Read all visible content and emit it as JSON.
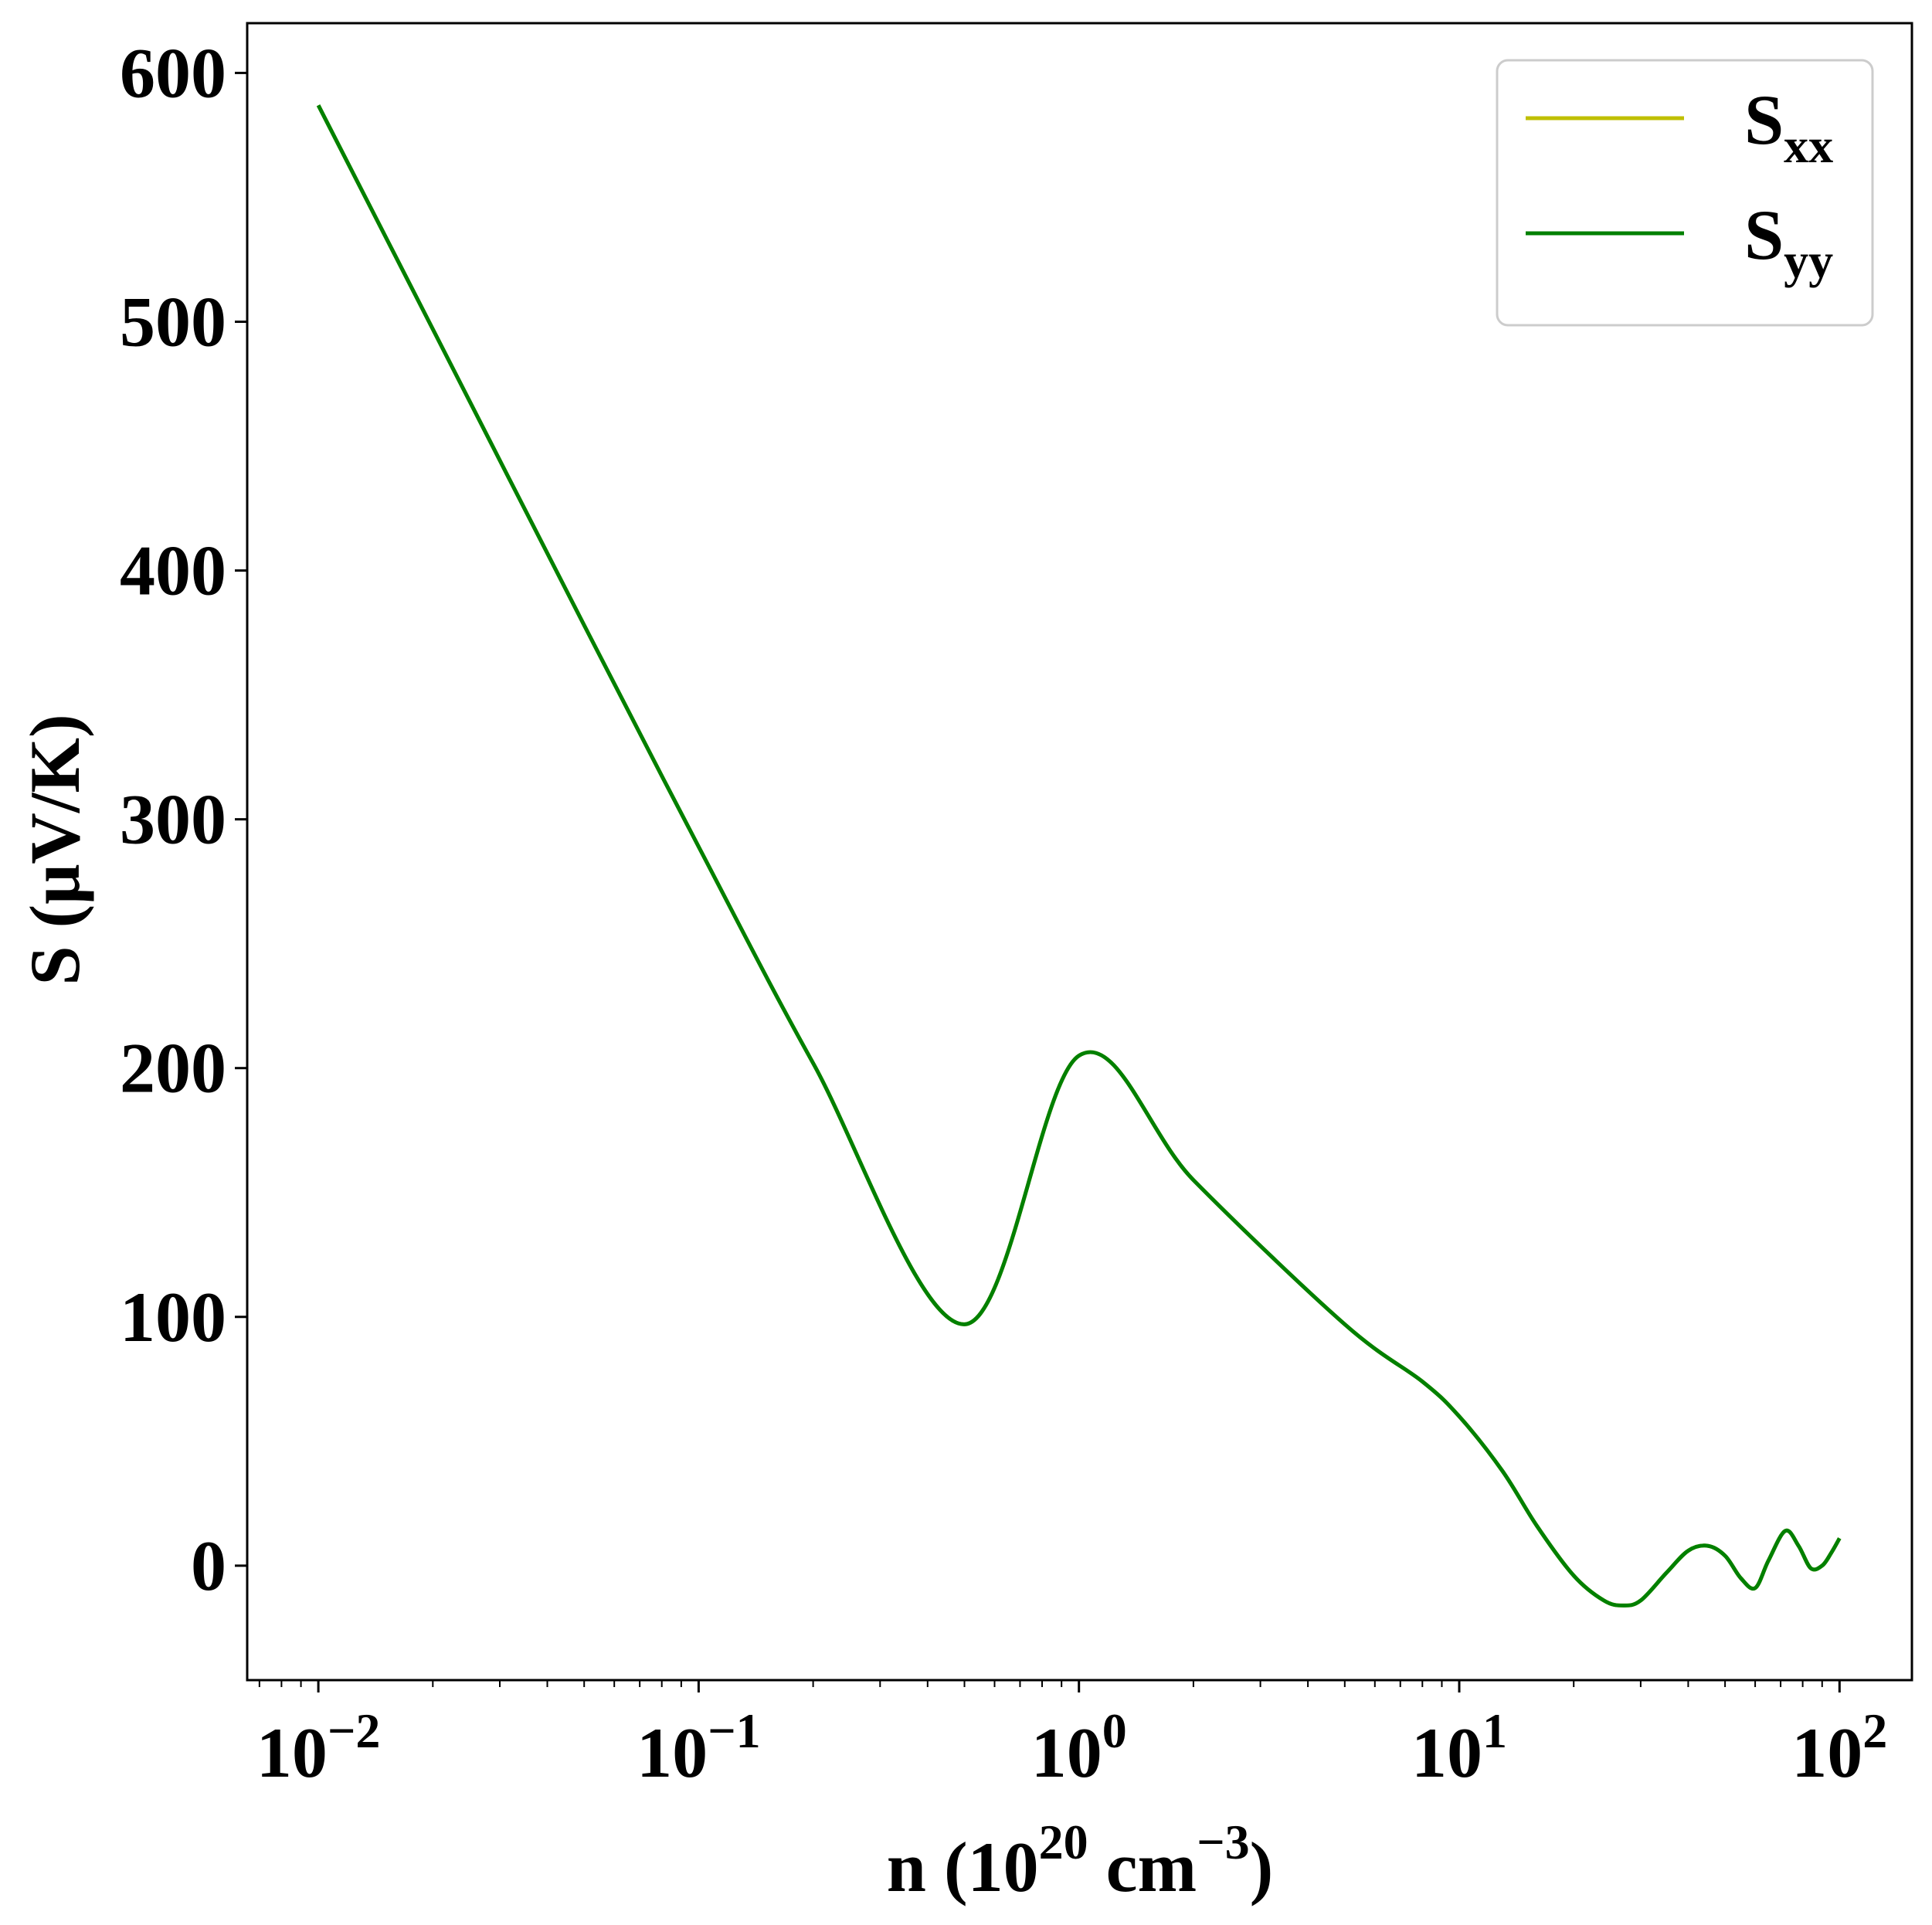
{
  "chart_data": {
    "type": "line",
    "x_scale": "log",
    "xlabel": {
      "main": "n (10",
      "sup1": "20",
      "mid": " cm",
      "sup2": "−3",
      "end": ")"
    },
    "ylabel": "S (μV/K)",
    "xlim": [
      0.0065,
      155
    ],
    "ylim": [
      -46,
      620
    ],
    "x_ticks": [
      {
        "value": 0.01,
        "base": "10",
        "exp": "−2"
      },
      {
        "value": 0.1,
        "base": "10",
        "exp": "−1"
      },
      {
        "value": 1,
        "base": "10",
        "exp": "0"
      },
      {
        "value": 10,
        "base": "10",
        "exp": "1"
      },
      {
        "value": 100,
        "base": "10",
        "exp": "2"
      }
    ],
    "y_ticks": [
      {
        "value": 0,
        "label": "0"
      },
      {
        "value": 100,
        "label": "100"
      },
      {
        "value": 200,
        "label": "200"
      },
      {
        "value": 300,
        "label": "300"
      },
      {
        "value": 400,
        "label": "400"
      },
      {
        "value": 500,
        "label": "500"
      },
      {
        "value": 600,
        "label": "600"
      }
    ],
    "grid": false,
    "legend": {
      "placement": "top-right"
    },
    "series": [
      {
        "name": "S_xx",
        "label_base": "S",
        "label_sub": "xx",
        "color": "#bfbf00",
        "points": [
          [
            0.01,
            587
          ],
          [
            0.02,
            497
          ],
          [
            0.05,
            378
          ],
          [
            0.1,
            289
          ],
          [
            0.2,
            202
          ],
          [
            0.5,
            97
          ],
          [
            1,
            205
          ],
          [
            2,
            155
          ],
          [
            5,
            97
          ],
          [
            8,
            74
          ],
          [
            10,
            60
          ],
          [
            13,
            38
          ],
          [
            16,
            16
          ],
          [
            20,
            -4
          ],
          [
            24,
            -14
          ],
          [
            27,
            -16
          ],
          [
            30,
            -14
          ],
          [
            35,
            -3
          ],
          [
            40,
            6
          ],
          [
            45,
            8
          ],
          [
            50,
            4
          ],
          [
            55,
            -5
          ],
          [
            60,
            -9
          ],
          [
            65,
            2
          ],
          [
            72,
            14
          ],
          [
            78,
            8
          ],
          [
            84,
            -1
          ],
          [
            90,
            0
          ],
          [
            95,
            5
          ],
          [
            100,
            11
          ]
        ]
      },
      {
        "name": "S_yy",
        "label_base": "S",
        "label_sub": "yy",
        "color": "#008000",
        "points": [
          [
            0.01,
            587
          ],
          [
            0.02,
            497
          ],
          [
            0.05,
            378
          ],
          [
            0.1,
            289
          ],
          [
            0.2,
            202
          ],
          [
            0.5,
            97
          ],
          [
            1,
            205
          ],
          [
            2,
            155
          ],
          [
            5,
            97
          ],
          [
            8,
            74
          ],
          [
            10,
            60
          ],
          [
            13,
            38
          ],
          [
            16,
            16
          ],
          [
            20,
            -4
          ],
          [
            24,
            -14
          ],
          [
            27,
            -16
          ],
          [
            30,
            -14
          ],
          [
            35,
            -3
          ],
          [
            40,
            6
          ],
          [
            45,
            8
          ],
          [
            50,
            4
          ],
          [
            55,
            -5
          ],
          [
            60,
            -9
          ],
          [
            65,
            2
          ],
          [
            72,
            14
          ],
          [
            78,
            8
          ],
          [
            84,
            -1
          ],
          [
            90,
            0
          ],
          [
            95,
            5
          ],
          [
            100,
            11
          ]
        ]
      }
    ]
  }
}
